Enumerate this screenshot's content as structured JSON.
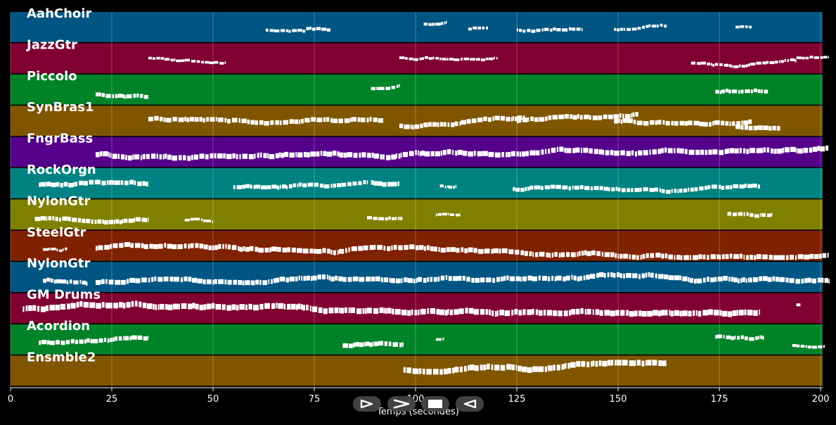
{
  "tracks": [
    {
      "label": "AahChoir",
      "color": "#005582",
      "segs": [
        [
          63,
          10,
          0.2
        ],
        [
          73,
          6,
          0.25
        ],
        [
          102,
          5.5,
          0.2
        ],
        [
          113,
          5,
          0.2
        ],
        [
          125,
          16,
          0.25
        ],
        [
          149,
          13,
          0.2
        ],
        [
          179,
          4,
          0.15
        ]
      ]
    },
    {
      "label": "JazzGtr",
      "color": "#800031",
      "segs": [
        [
          34,
          19,
          0.15
        ],
        [
          96,
          24,
          0.15
        ],
        [
          168,
          26,
          0.2
        ],
        [
          194,
          8,
          0.15
        ]
      ]
    },
    {
      "label": "Piccolo",
      "color": "#008228",
      "segs": [
        [
          21,
          13,
          0.4
        ],
        [
          89,
          7,
          0.25
        ],
        [
          174,
          13,
          0.35
        ]
      ]
    },
    {
      "label": "SynBras1",
      "color": "#7f5500",
      "segs": [
        [
          34,
          58,
          0.5
        ],
        [
          96,
          31,
          0.5
        ],
        [
          125,
          30,
          0.5
        ],
        [
          149,
          34,
          0.5
        ],
        [
          179,
          11,
          0.5
        ]
      ]
    },
    {
      "label": "FngrBass",
      "color": "#55008a",
      "segs": [
        [
          21,
          181,
          0.6
        ]
      ]
    },
    {
      "label": "RockOrgn",
      "color": "#008282",
      "segs": [
        [
          7,
          27,
          0.5
        ],
        [
          55,
          33,
          0.4
        ],
        [
          89,
          7,
          0.5
        ],
        [
          106,
          4,
          0.2
        ],
        [
          124,
          61,
          0.4
        ]
      ]
    },
    {
      "label": "NylonGtr",
      "color": "#808000",
      "segs": [
        [
          6,
          28,
          0.45
        ],
        [
          43,
          7,
          0.15
        ],
        [
          88,
          9,
          0.25
        ],
        [
          105,
          6,
          0.15
        ],
        [
          177,
          11,
          0.35
        ]
      ]
    },
    {
      "label": "SteelGtr",
      "color": "#7f2200",
      "segs": [
        [
          8,
          6,
          0.15
        ],
        [
          21,
          181,
          0.55
        ]
      ]
    },
    {
      "label": "NylonGtr",
      "color": "#005582",
      "segs": [
        [
          8,
          11,
          0.4
        ],
        [
          21,
          181,
          0.55
        ]
      ]
    },
    {
      "label": "GM Drums",
      "color": "#800031",
      "segs": [
        [
          3,
          182,
          0.7
        ],
        [
          194,
          1,
          0.2
        ]
      ]
    },
    {
      "label": "Acordion",
      "color": "#008228",
      "segs": [
        [
          7,
          27,
          0.45
        ],
        [
          82,
          15,
          0.5
        ],
        [
          105,
          2,
          0.15
        ],
        [
          174,
          12,
          0.35
        ],
        [
          193,
          8,
          0.2
        ]
      ]
    },
    {
      "label": "Ensmble2",
      "color": "#7f5500",
      "segs": [
        [
          97,
          65,
          0.7
        ]
      ]
    }
  ],
  "xaxis": {
    "label": "Temps (secondes)",
    "ticks": [
      0,
      25,
      50,
      75,
      100,
      125,
      150,
      175,
      200
    ],
    "tick_labels": [
      "0",
      "25",
      "50",
      "75",
      "100",
      "125",
      "150",
      "175",
      "200"
    ],
    "min": 0,
    "max": 200.5
  },
  "transport": [
    {
      "name": "play-button",
      "icon": "play-outline-icon"
    },
    {
      "name": "forward-button",
      "icon": "chevron-right-icon"
    },
    {
      "name": "stop-button",
      "icon": "stop-square-icon"
    },
    {
      "name": "back-button",
      "icon": "play-reverse-outline-icon"
    }
  ]
}
